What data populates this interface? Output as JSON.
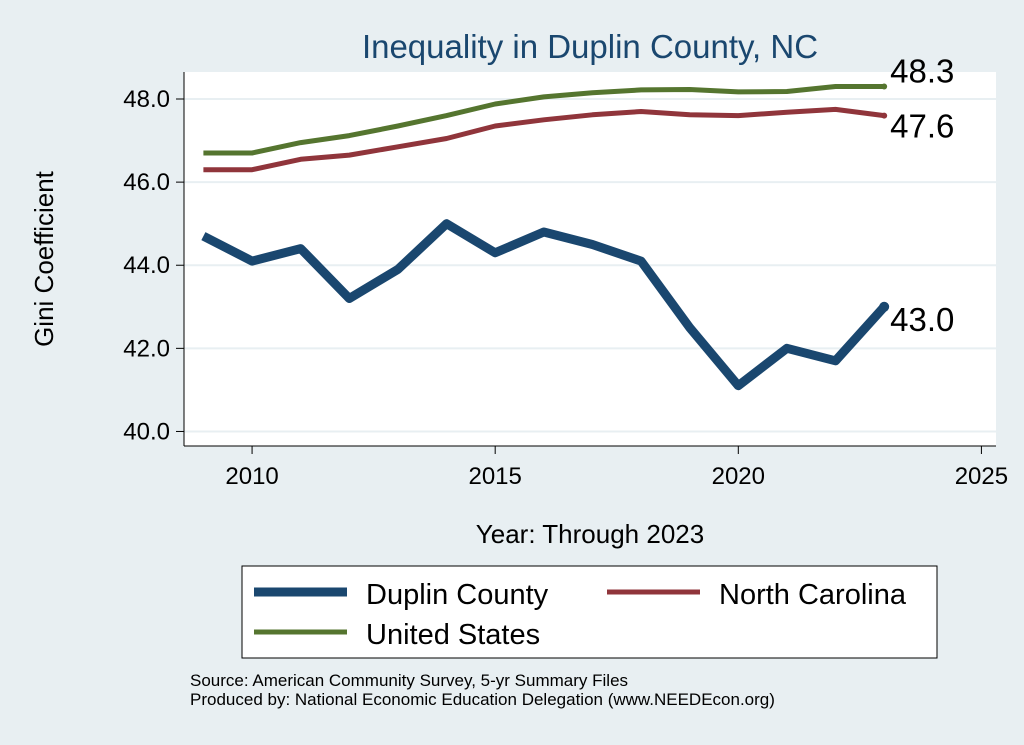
{
  "chart_data": {
    "type": "line",
    "title": "Inequality in Duplin County, NC",
    "xlabel": "Year: Through 2023",
    "ylabel": "Gini Coefficient",
    "xlim": [
      2008.6,
      2025.3
    ],
    "ylim": [
      39.65,
      48.65
    ],
    "xticks": [
      2010,
      2015,
      2020,
      2025
    ],
    "yticks": [
      40,
      42,
      44,
      46,
      48
    ],
    "ytick_labels": [
      "40.0",
      "42.0",
      "44.0",
      "46.0",
      "48.0"
    ],
    "grid": true,
    "x": [
      2009,
      2010,
      2011,
      2012,
      2013,
      2014,
      2015,
      2016,
      2017,
      2018,
      2019,
      2020,
      2021,
      2022,
      2023
    ],
    "series": [
      {
        "name": "Duplin County",
        "color": "#1a476f",
        "values": [
          44.7,
          44.1,
          44.4,
          43.2,
          43.9,
          45.0,
          44.3,
          44.8,
          44.5,
          44.1,
          42.5,
          41.1,
          42.0,
          41.7,
          43.0
        ],
        "end_label": "43.0"
      },
      {
        "name": "North Carolina",
        "color": "#90353b",
        "values": [
          46.3,
          46.3,
          46.55,
          46.65,
          46.85,
          47.05,
          47.35,
          47.5,
          47.62,
          47.7,
          47.62,
          47.6,
          47.68,
          47.75,
          47.6
        ],
        "end_label": "47.6"
      },
      {
        "name": "United States",
        "color": "#55752f",
        "values": [
          46.7,
          46.7,
          46.95,
          47.12,
          47.35,
          47.6,
          47.88,
          48.05,
          48.15,
          48.22,
          48.23,
          48.17,
          48.18,
          48.3,
          48.3
        ],
        "end_label": "48.3"
      }
    ],
    "legend": {
      "position": "bottom",
      "entries": [
        "Duplin County",
        "North Carolina",
        "United States"
      ]
    }
  },
  "footer": {
    "source_line": "Source: American Community Survey, 5-yr Summary Files",
    "produced_line": "Produced by: National Economic Education Delegation (www.NEEDEcon.org)"
  }
}
